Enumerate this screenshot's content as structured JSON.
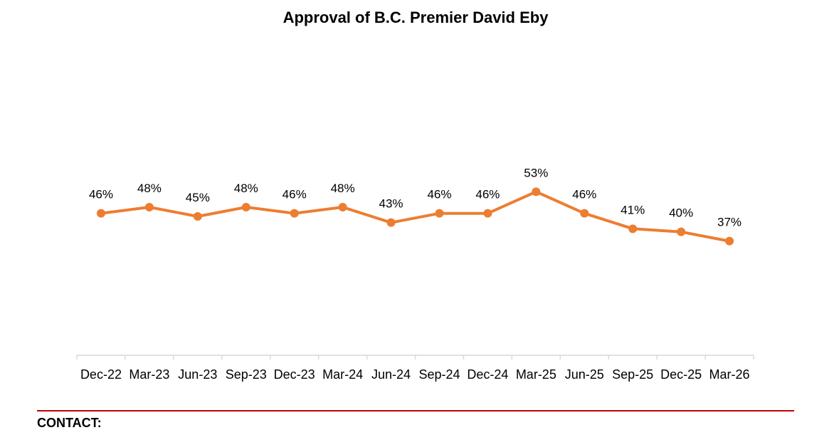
{
  "chart_data": {
    "type": "line",
    "title": "Approval of B.C. Premier David Eby",
    "xlabel": "",
    "ylabel": "",
    "categories": [
      "Dec-22",
      "Mar-23",
      "Jun-23",
      "Sep-23",
      "Dec-23",
      "Mar-24",
      "Jun-24",
      "Sep-24",
      "Dec-24",
      "Mar-25",
      "Jun-25",
      "Sep-25",
      "Dec-25",
      "Mar-26"
    ],
    "series": [
      {
        "name": "Approval",
        "values": [
          46,
          48,
          45,
          48,
          46,
          48,
          43,
          46,
          46,
          53,
          46,
          41,
          40,
          37
        ],
        "data_labels": [
          "46%",
          "48%",
          "45%",
          "48%",
          "46%",
          "48%",
          "43%",
          "46%",
          "46%",
          "53%",
          "46%",
          "41%",
          "40%",
          "37%"
        ],
        "color": "#ED7D31"
      }
    ],
    "ylim": [
      0,
      90
    ],
    "grid": false,
    "legend": "none"
  },
  "colors": {
    "line": "#ED7D31",
    "axis": "#D9D9D9",
    "rule": "#C00000"
  },
  "footer": {
    "contact_label": "CONTACT:"
  }
}
